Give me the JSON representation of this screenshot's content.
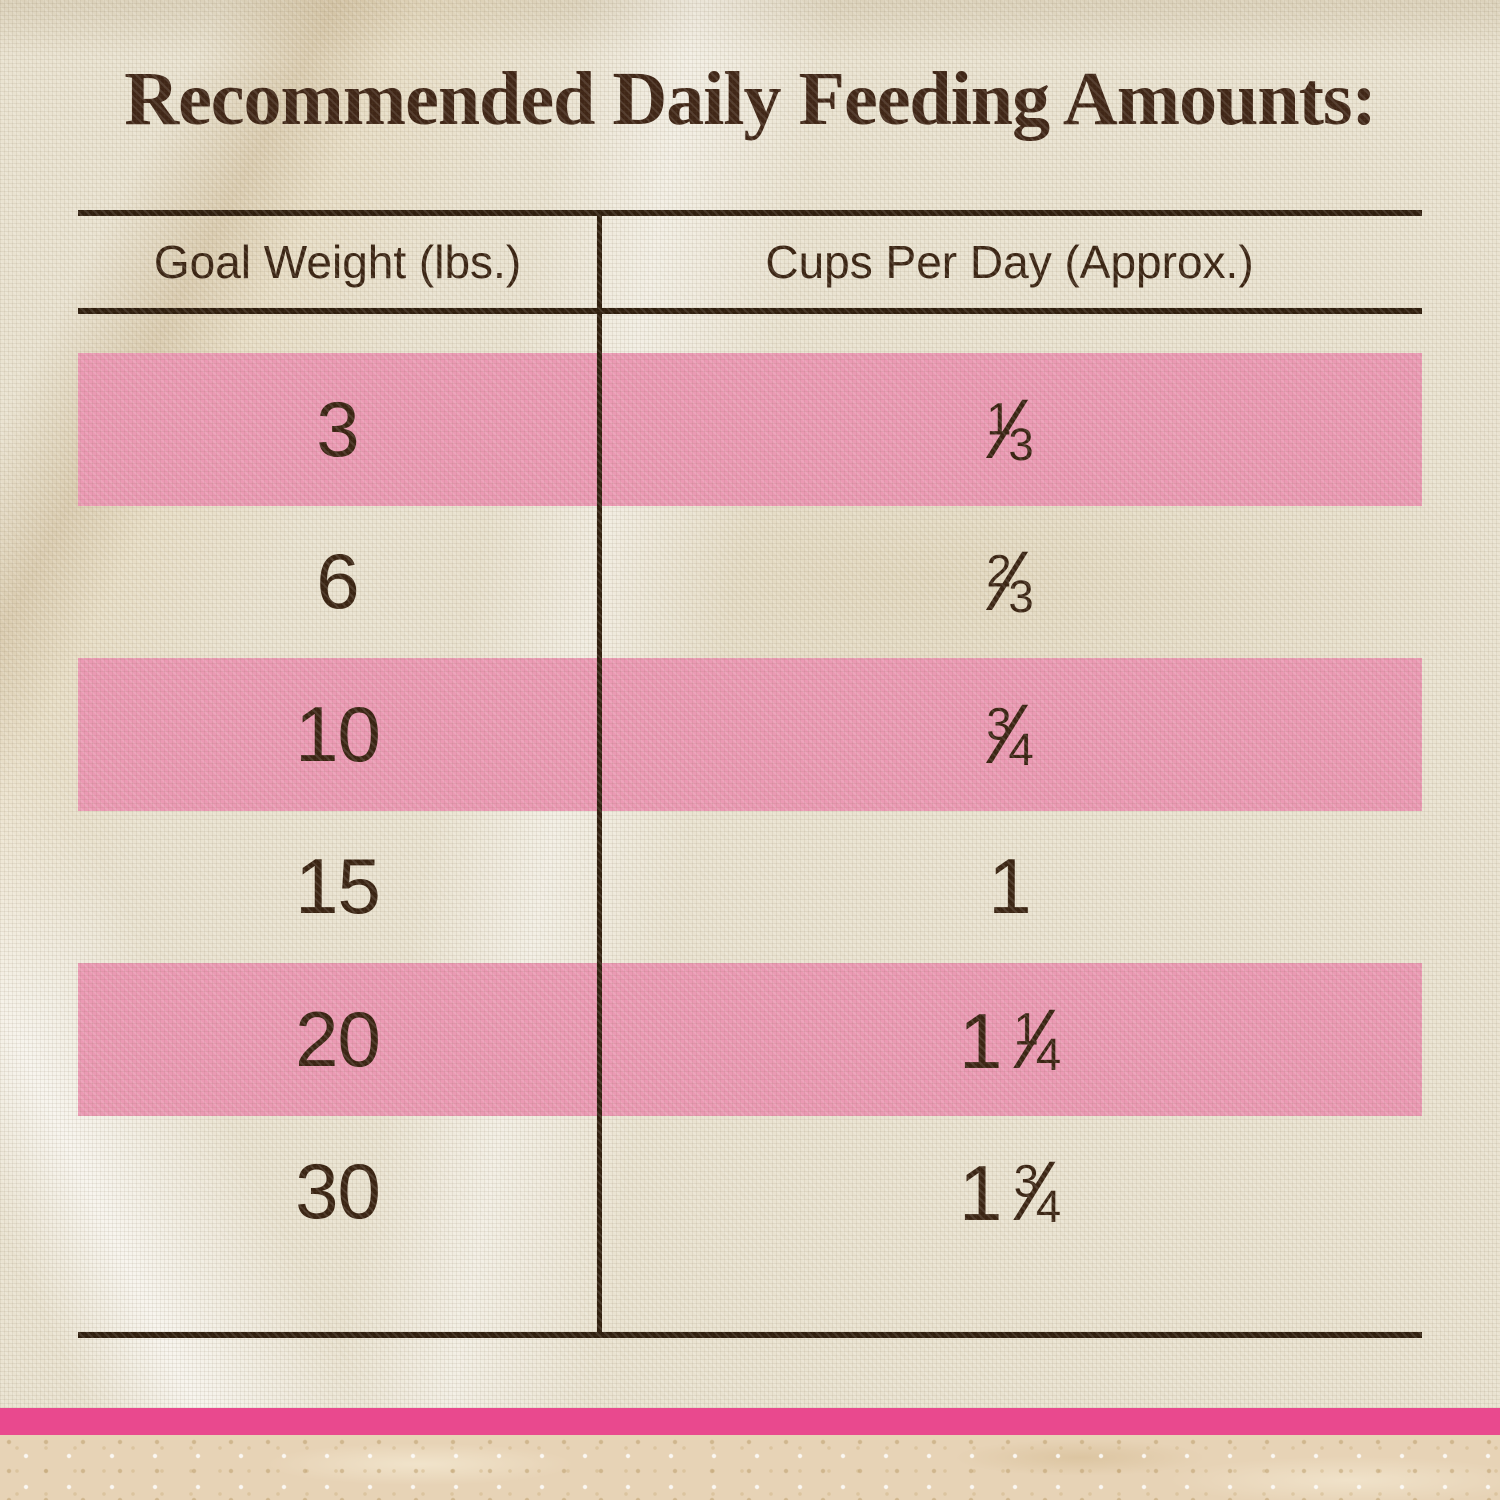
{
  "page": {
    "title": "Recommended Daily Feeding Amounts:"
  },
  "table": {
    "header": {
      "goal_weight": "Goal Weight (lbs.)",
      "cups_per_day": "Cups Per Day (Approx.)"
    },
    "rows": [
      {
        "weight": "3",
        "cups_whole": "",
        "cups_num": "1",
        "cups_den": "3",
        "highlight": true
      },
      {
        "weight": "6",
        "cups_whole": "",
        "cups_num": "2",
        "cups_den": "3",
        "highlight": false
      },
      {
        "weight": "10",
        "cups_whole": "",
        "cups_num": "3",
        "cups_den": "4",
        "highlight": true
      },
      {
        "weight": "15",
        "cups_whole": "1",
        "cups_num": "",
        "cups_den": "",
        "highlight": false
      },
      {
        "weight": "20",
        "cups_whole": "1",
        "cups_num": "1",
        "cups_den": "4",
        "highlight": true
      },
      {
        "weight": "30",
        "cups_whole": "1",
        "cups_num": "3",
        "cups_den": "4",
        "highlight": false
      }
    ]
  },
  "chart_data": {
    "type": "table",
    "title": "Recommended Daily Feeding Amounts:",
    "columns": [
      "Goal Weight (lbs.)",
      "Cups Per Day (Approx.)"
    ],
    "rows": [
      [
        "3",
        "1/3"
      ],
      [
        "6",
        "2/3"
      ],
      [
        "10",
        "3/4"
      ],
      [
        "15",
        "1"
      ],
      [
        "20",
        "1 1/4"
      ],
      [
        "30",
        "1 3/4"
      ]
    ],
    "highlighted_row_indices": [
      0,
      2,
      4
    ],
    "layout": "two-column feeding table printed on linen fabric, alternating pink highlight bands, pink accent bar and marble strip at bottom"
  },
  "colors": {
    "title_text": "#402617",
    "table_text": "#3a2413",
    "rule": "#2f1e0e",
    "row_highlight": "#eb9ab4",
    "accent_bar": "#e9498e",
    "fabric_base": "#eae3d1",
    "marble_base": "#e7d3b6"
  }
}
